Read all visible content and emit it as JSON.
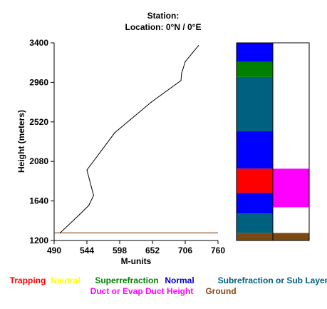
{
  "header": {
    "station_line": "Station:",
    "location_line": "Location:   0°N /   0°E"
  },
  "chart_data": {
    "type": "line",
    "xlabel": "M-units",
    "ylabel": "Height (meters)",
    "xlim": [
      490,
      760
    ],
    "ylim": [
      1200,
      3400
    ],
    "x_ticks": [
      490,
      544,
      598,
      652,
      706,
      760
    ],
    "y_ticks": [
      1200,
      1640,
      2080,
      2520,
      2960,
      3400
    ],
    "grid": false,
    "series": [
      {
        "x": [
          500,
          532,
          547,
          555,
          544,
          590,
          650,
          699,
          700,
          706,
          728
        ],
        "y": [
          1285,
          1490,
          1590,
          1700,
          1985,
          2400,
          2740,
          2980,
          3060,
          3190,
          3370
        ],
        "color": "#000000"
      }
    ],
    "ground_line": {
      "y": 1285,
      "color": "#8B4513"
    },
    "layer_columns": [
      {
        "segments": [
          {
            "from": 1200,
            "to": 1285,
            "category": "Ground",
            "color": "#7B4A12"
          },
          {
            "from": 1285,
            "to": 1500,
            "category": "Subrefraction or Sub Layer",
            "color": "#006080"
          },
          {
            "from": 1500,
            "to": 1730,
            "category": "Normal",
            "color": "#0000FF"
          },
          {
            "from": 1730,
            "to": 2000,
            "category": "Trapping",
            "color": "#FF0000"
          },
          {
            "from": 2000,
            "to": 2415,
            "category": "Normal",
            "color": "#0000FF"
          },
          {
            "from": 2415,
            "to": 3020,
            "category": "Subrefraction or Sub Layer",
            "color": "#006080"
          },
          {
            "from": 3020,
            "to": 3190,
            "category": "Superrefraction",
            "color": "#008000"
          },
          {
            "from": 3190,
            "to": 3400,
            "category": "Normal",
            "color": "#0000FF"
          }
        ]
      },
      {
        "segments": [
          {
            "from": 1200,
            "to": 1285,
            "category": "Ground",
            "color": "#7B4A12"
          },
          {
            "from": 1285,
            "to": 1570,
            "category": "None",
            "color": "#FFFFFF"
          },
          {
            "from": 1570,
            "to": 2000,
            "category": "Duct or Evap Duct Height",
            "color": "#FF00FF"
          },
          {
            "from": 2000,
            "to": 3400,
            "category": "None",
            "color": "#FFFFFF"
          }
        ]
      }
    ],
    "legend": [
      {
        "label": "Trapping",
        "color": "#FF0000"
      },
      {
        "label": "Neutral",
        "color": "#FFFF00"
      },
      {
        "label": "Superrefraction",
        "color": "#008000"
      },
      {
        "label": "Normal",
        "color": "#0000CC"
      },
      {
        "label": "Subrefraction or Sub Layer",
        "color": "#006080"
      },
      {
        "label": "Duct or Evap Duct Height",
        "color": "#FF00FF"
      },
      {
        "label": "Ground",
        "color": "#8B4513"
      }
    ],
    "legend_placement": "bottom"
  }
}
